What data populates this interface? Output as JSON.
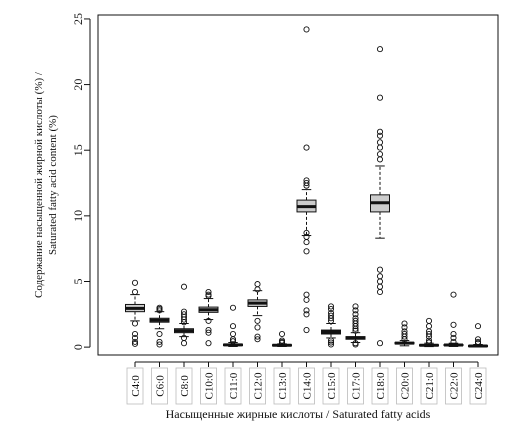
{
  "chart_data": {
    "type": "box",
    "title": "",
    "xlabel": "Насыщенные жирные кислоты / Saturated fatty acids",
    "ylabel_line1": "Содержание насыщенной жирной кислоты (%) /",
    "ylabel_line2": "Saturated fatty acid content (%)",
    "ylim": [
      -0.6,
      25.3
    ],
    "yticks": [
      0,
      5,
      10,
      15,
      20,
      25
    ],
    "grid": false,
    "categories": [
      "C4:0",
      "C6:0",
      "C8:0",
      "C10:0",
      "C11:0",
      "C12:0",
      "C13:0",
      "C14:0",
      "C15:0",
      "C17:0",
      "C18:0",
      "C20:0",
      "C21:0",
      "C22:0",
      "C24:0"
    ],
    "boxes": [
      {
        "category": "C4:0",
        "min": 2.0,
        "q1": 2.7,
        "median": 2.95,
        "q3": 3.25,
        "max": 4.0,
        "outliers": [
          4.9,
          4.2,
          1.8,
          1.0,
          0.7,
          0.4,
          0.25
        ]
      },
      {
        "category": "C6:0",
        "min": 1.4,
        "q1": 1.9,
        "median": 2.05,
        "q3": 2.2,
        "max": 2.7,
        "outliers": [
          3.0,
          2.9,
          2.8,
          1.0,
          0.4,
          0.2
        ]
      },
      {
        "category": "C8:0",
        "min": 0.8,
        "q1": 1.1,
        "median": 1.25,
        "q3": 1.4,
        "max": 1.8,
        "outliers": [
          4.6,
          2.7,
          2.5,
          2.3,
          2.1,
          1.9,
          0.7,
          0.3
        ]
      },
      {
        "category": "C10:0",
        "min": 2.1,
        "q1": 2.65,
        "median": 2.85,
        "q3": 3.05,
        "max": 3.7,
        "outliers": [
          4.2,
          4.0,
          3.9,
          2.0,
          1.3,
          1.1,
          0.3
        ]
      },
      {
        "category": "C11:0",
        "min": 0.05,
        "q1": 0.12,
        "median": 0.17,
        "q3": 0.22,
        "max": 0.35,
        "outliers": [
          3.0,
          1.6,
          1.0,
          0.6,
          0.45
        ]
      },
      {
        "category": "C12:0",
        "min": 2.4,
        "q1": 3.1,
        "median": 3.35,
        "q3": 3.6,
        "max": 4.3,
        "outliers": [
          4.8,
          4.4,
          2.0,
          1.5,
          0.8,
          0.6
        ]
      },
      {
        "category": "C13:0",
        "min": 0.05,
        "q1": 0.1,
        "median": 0.14,
        "q3": 0.18,
        "max": 0.25,
        "outliers": [
          1.0,
          0.5,
          0.4,
          0.32
        ]
      },
      {
        "category": "C14:0",
        "min": 8.5,
        "q1": 10.3,
        "median": 10.7,
        "q3": 11.2,
        "max": 12.0,
        "outliers": [
          24.2,
          15.2,
          12.7,
          12.5,
          12.3,
          8.7,
          8.4,
          8.0,
          7.3,
          4.0,
          3.6,
          2.8,
          2.5,
          1.3
        ]
      },
      {
        "category": "C15:0",
        "min": 0.7,
        "q1": 1.0,
        "median": 1.15,
        "q3": 1.3,
        "max": 1.8,
        "outliers": [
          3.1,
          2.9,
          2.6,
          2.4,
          2.2,
          2.0,
          0.5,
          0.35,
          0.2
        ]
      },
      {
        "category": "C17:0",
        "min": 0.35,
        "q1": 0.6,
        "median": 0.7,
        "q3": 0.8,
        "max": 1.1,
        "outliers": [
          3.1,
          2.8,
          2.5,
          2.2,
          2.0,
          1.8,
          1.6,
          1.4,
          1.25,
          0.3,
          0.2
        ]
      },
      {
        "category": "C18:0",
        "min": 8.3,
        "q1": 10.3,
        "median": 11.0,
        "q3": 11.6,
        "max": 13.8,
        "outliers": [
          22.7,
          19.0,
          16.4,
          16.1,
          15.6,
          15.2,
          14.7,
          14.3,
          5.9,
          5.4,
          5.0,
          4.6,
          4.2,
          0.3
        ]
      },
      {
        "category": "C20:0",
        "min": 0.1,
        "q1": 0.25,
        "median": 0.3,
        "q3": 0.36,
        "max": 0.5,
        "outliers": [
          1.8,
          1.5,
          1.2,
          1.0,
          0.8,
          0.6
        ]
      },
      {
        "category": "C21:0",
        "min": 0.04,
        "q1": 0.1,
        "median": 0.14,
        "q3": 0.18,
        "max": 0.3,
        "outliers": [
          2.0,
          1.6,
          1.2,
          1.0,
          0.8,
          0.5,
          0.35
        ]
      },
      {
        "category": "C22:0",
        "min": 0.05,
        "q1": 0.12,
        "median": 0.16,
        "q3": 0.2,
        "max": 0.3,
        "outliers": [
          4.0,
          1.7,
          1.0,
          0.7,
          0.4
        ]
      },
      {
        "category": "C24:0",
        "min": 0.02,
        "q1": 0.06,
        "median": 0.09,
        "q3": 0.12,
        "max": 0.2,
        "outliers": [
          1.6,
          0.6,
          0.4,
          0.3
        ]
      }
    ],
    "colors": {
      "box_fill": "#cccccc",
      "stroke": "#111111",
      "background": "#ffffff"
    }
  }
}
